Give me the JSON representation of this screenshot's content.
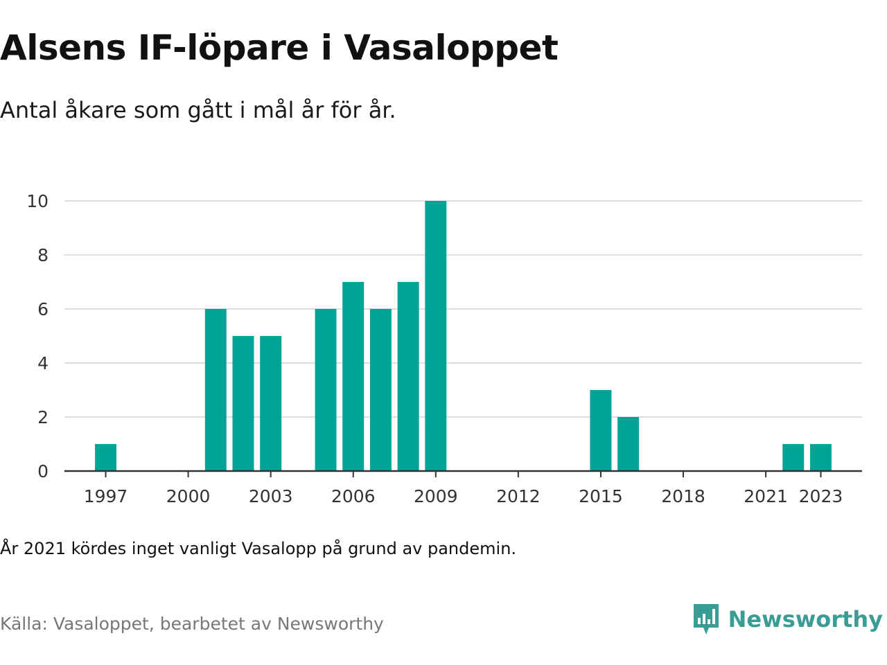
{
  "header": {
    "title": "Alsens IF-löpare i Vasaloppet",
    "subtitle": "Antal åkare som gått i mål år för år."
  },
  "footer": {
    "note": "År 2021 kördes inget vanligt Vasalopp på grund av pandemin.",
    "source": "Källa: Vasaloppet, bearbetet av Newsworthy",
    "logo_text": "Newsworthy"
  },
  "colors": {
    "bar": "#00a398",
    "grid": "#dddddd",
    "axis": "#333333",
    "logo": "#3a9d95"
  },
  "chart_data": {
    "type": "bar",
    "title": "Alsens IF-löpare i Vasaloppet",
    "subtitle": "Antal åkare som gått i mål år för år.",
    "xlabel": "",
    "ylabel": "",
    "x_tick_labels": [
      "1997",
      "2000",
      "2003",
      "2006",
      "2009",
      "2012",
      "2015",
      "2018",
      "2021",
      "2023"
    ],
    "y_tick_labels": [
      "0",
      "2",
      "4",
      "6",
      "8",
      "10"
    ],
    "ylim": [
      0,
      10
    ],
    "xlim": [
      1995.5,
      2024.5
    ],
    "grid": true,
    "legend": "none",
    "data": [
      {
        "x": 1997,
        "y": 1
      },
      {
        "x": 2001,
        "y": 6
      },
      {
        "x": 2002,
        "y": 5
      },
      {
        "x": 2003,
        "y": 5
      },
      {
        "x": 2005,
        "y": 6
      },
      {
        "x": 2006,
        "y": 7
      },
      {
        "x": 2007,
        "y": 6
      },
      {
        "x": 2008,
        "y": 7
      },
      {
        "x": 2009,
        "y": 10
      },
      {
        "x": 2015,
        "y": 3
      },
      {
        "x": 2016,
        "y": 2
      },
      {
        "x": 2022,
        "y": 1
      },
      {
        "x": 2023,
        "y": 1
      }
    ]
  }
}
